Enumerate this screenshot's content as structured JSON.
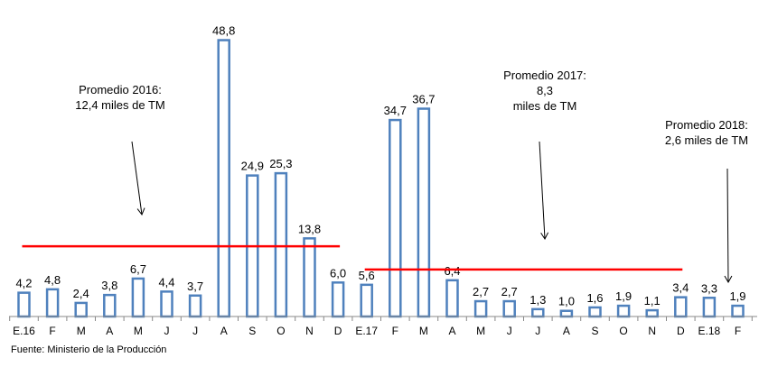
{
  "chart_data": {
    "type": "bar",
    "categories": [
      "E.16",
      "F",
      "M",
      "A",
      "M",
      "J",
      "J",
      "A",
      "S",
      "O",
      "N",
      "D",
      "E.17",
      "F",
      "M",
      "A",
      "M",
      "J",
      "J",
      "A",
      "S",
      "O",
      "N",
      "D",
      "E.18",
      "F"
    ],
    "values": [
      4.2,
      4.8,
      2.4,
      3.8,
      6.7,
      4.4,
      3.7,
      48.8,
      24.9,
      25.3,
      13.8,
      6.0,
      5.6,
      34.7,
      36.7,
      6.4,
      2.7,
      2.7,
      1.3,
      1.0,
      1.6,
      1.9,
      1.1,
      3.4,
      3.3,
      1.9
    ],
    "value_labels": [
      "4,2",
      "4,8",
      "2,4",
      "3,8",
      "6,7",
      "4,4",
      "3,7",
      "48,8",
      "24,9",
      "25,3",
      "13,8",
      "6,0",
      "5,6",
      "34,7",
      "36,7",
      "6,4",
      "2,7",
      "2,7",
      "1,3",
      "1,0",
      "1,6",
      "1,9",
      "1,1",
      "3,4",
      "3,3",
      "1,9"
    ],
    "ylim": [
      0,
      50
    ],
    "grid": false,
    "colors": {
      "bar_stroke": "#4F81BD",
      "bar_fill": "#FFFFFF",
      "average_line": "#FF0000"
    },
    "averages": [
      {
        "value": 12.4,
        "from": 0,
        "to": 11,
        "lines": [
          "Promedio 2016:",
          "12,4 miles de TM"
        ]
      },
      {
        "value": 8.3,
        "from": 12,
        "to": 23,
        "lines": [
          "Promedio 2017:",
          "8,3",
          "miles de TM"
        ]
      },
      {
        "value": 2.6,
        "from": 24,
        "to": 25,
        "lines": [
          "Promedio 2018:",
          "2,6 miles de TM"
        ]
      }
    ],
    "source": "Fuente: Ministerio de la Producción"
  }
}
